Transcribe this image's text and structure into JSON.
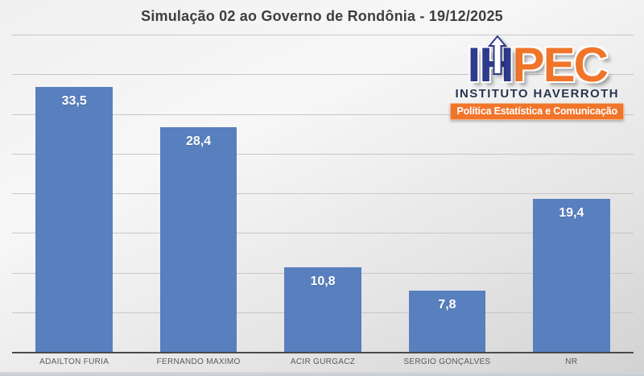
{
  "chart_data": {
    "type": "bar",
    "title": "Simulação 02 ao Governo de Rondônia - 19/12/2025",
    "categories": [
      "ADAILTON FÚRIA",
      "FERNANDO MAXIMO",
      "ACIR GURGACZ",
      "SÉRGIO GONÇALVES",
      "NR"
    ],
    "values": [
      33.5,
      28.4,
      10.8,
      7.8,
      19.4
    ],
    "value_labels": [
      "33,5",
      "28,4",
      "10,8",
      "7,8",
      "19,4"
    ],
    "xlabel": "",
    "ylabel": "",
    "ylim": [
      0,
      40
    ],
    "gridline_step": 5,
    "grid": true,
    "legend": "none",
    "bar_color": "#587fbe"
  },
  "logo": {
    "letters": {
      "i": "I",
      "h": "H",
      "pec": "PEC"
    },
    "institute": "INSTITUTO HAVERROTH",
    "tagline": "Política Estatística e Comunicação",
    "colors": {
      "navy": "#2e3a8c",
      "orange": "#f0752b"
    }
  }
}
